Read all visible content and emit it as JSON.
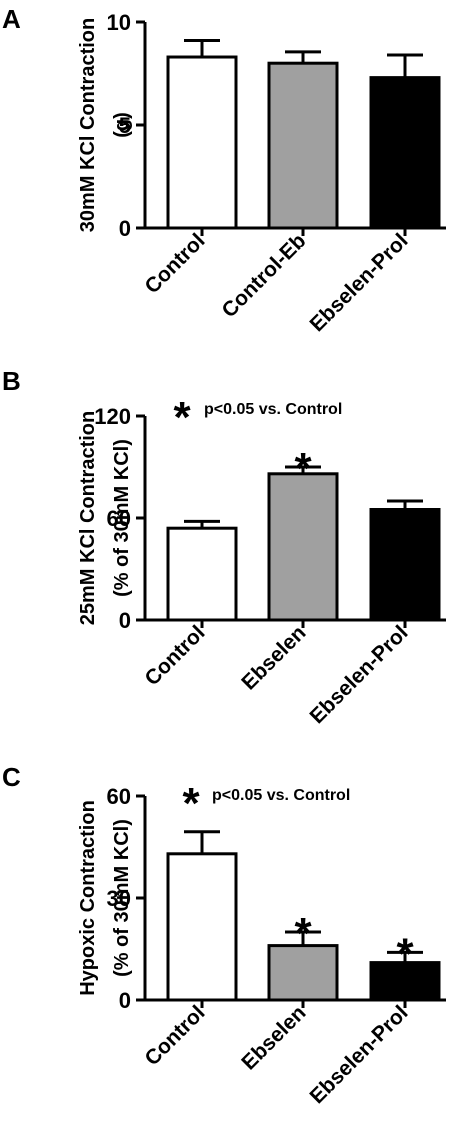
{
  "chart_data": [
    {
      "type": "bar",
      "panel": "A",
      "ylabel_lines": [
        "30mM KCl Contraction",
        "(g)"
      ],
      "ylim": [
        0,
        10
      ],
      "yticks": [
        0,
        5,
        10
      ],
      "ytick_labels": [
        "0",
        "5",
        "10"
      ],
      "categories": [
        "Control",
        "Control-Eb",
        "Ebselen-Prol"
      ],
      "values": [
        8.3,
        8.0,
        7.3
      ],
      "errors": [
        0.8,
        0.55,
        1.1
      ],
      "colors": [
        "#ffffff",
        "#a0a0a0",
        "#000000"
      ],
      "significant": [
        false,
        false,
        false
      ],
      "legend": ""
    },
    {
      "type": "bar",
      "panel": "B",
      "ylabel_lines": [
        "25mM KCl Contraction",
        "(% of 30mM KCl)"
      ],
      "ylim": [
        0,
        120
      ],
      "yticks": [
        0,
        60,
        120
      ],
      "ytick_labels": [
        "0",
        "60",
        "120"
      ],
      "categories": [
        "Control",
        "Ebselen",
        "Ebselen-Prol"
      ],
      "values": [
        54,
        86,
        65
      ],
      "errors": [
        4,
        4,
        5
      ],
      "colors": [
        "#ffffff",
        "#a0a0a0",
        "#000000"
      ],
      "significant": [
        false,
        true,
        false
      ],
      "legend": "p<0.05 vs. Control"
    },
    {
      "type": "bar",
      "panel": "C",
      "ylabel_lines": [
        "Hypoxic Contraction",
        "(% of 30mM KCl)"
      ],
      "ylim": [
        0,
        60
      ],
      "yticks": [
        0,
        30,
        60
      ],
      "ytick_labels": [
        "0",
        "30",
        "60"
      ],
      "categories": [
        "Control",
        "Ebselen",
        "Ebselen-Prol"
      ],
      "values": [
        43,
        16,
        11
      ],
      "errors": [
        6.5,
        4,
        3
      ],
      "colors": [
        "#ffffff",
        "#a0a0a0",
        "#000000"
      ],
      "significant": [
        false,
        true,
        true
      ],
      "legend": "p<0.05 vs. Control"
    }
  ]
}
